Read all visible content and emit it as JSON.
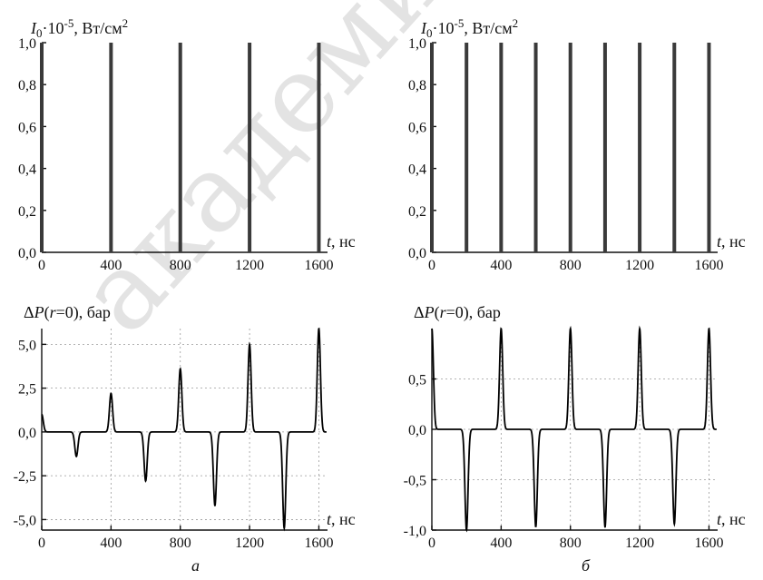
{
  "watermark": "академия наук Белар",
  "chart_data": [
    {
      "type": "bar",
      "panel": "a-top",
      "ylabel": "I0·10^-5, Вт/см^2",
      "xlabel": "t, нс",
      "xlim": [
        0,
        1650
      ],
      "ylim": [
        0,
        1.0
      ],
      "x_ticks": [
        "0",
        "400",
        "800",
        "1200",
        "1600"
      ],
      "y_ticks": [
        "0,0",
        "0,2",
        "0,4",
        "0,6",
        "0,8",
        "1,0"
      ],
      "pulses_x": [
        0,
        400,
        800,
        1200,
        1600
      ],
      "pulse_value": 1.0,
      "grid": false
    },
    {
      "type": "bar",
      "panel": "b-top",
      "ylabel": "I0·10^-5, Вт/см^2",
      "xlabel": "t, нс",
      "xlim": [
        0,
        1650
      ],
      "ylim": [
        0,
        1.0
      ],
      "x_ticks": [
        "0",
        "400",
        "800",
        "1200",
        "1600"
      ],
      "y_ticks": [
        "0,0",
        "0,2",
        "0,4",
        "0,6",
        "0,8",
        "1,0"
      ],
      "pulses_x": [
        0,
        200,
        400,
        600,
        800,
        1000,
        1200,
        1400,
        1600
      ],
      "pulse_value": 1.0,
      "grid": false
    },
    {
      "type": "line",
      "panel": "a-bottom",
      "ylabel": "ΔP(r=0), бар",
      "xlabel": "t, нс",
      "caption": "а",
      "xlim": [
        0,
        1650
      ],
      "ylim": [
        -5.6,
        5.9
      ],
      "x_ticks": [
        "0",
        "400",
        "800",
        "1200",
        "1600"
      ],
      "y_ticks": [
        "-5,0",
        "-2,5",
        "0,0",
        "2,5",
        "5,0"
      ],
      "y_tick_values": [
        -5.0,
        -2.5,
        0.0,
        2.5,
        5.0
      ],
      "x_tick_values": [
        0,
        400,
        800,
        1200,
        1600
      ],
      "grid": true,
      "peaks": [
        {
          "x": 0,
          "y": 1.0
        },
        {
          "x": 200,
          "y": -1.4
        },
        {
          "x": 400,
          "y": 2.2
        },
        {
          "x": 600,
          "y": -2.8
        },
        {
          "x": 800,
          "y": 3.6
        },
        {
          "x": 1000,
          "y": -4.2
        },
        {
          "x": 1200,
          "y": 5.0
        },
        {
          "x": 1400,
          "y": -5.5
        },
        {
          "x": 1600,
          "y": 5.9
        }
      ]
    },
    {
      "type": "line",
      "panel": "b-bottom",
      "ylabel": "ΔP(r=0), бар",
      "xlabel": "t, нс",
      "caption": "б",
      "xlim": [
        0,
        1650
      ],
      "ylim": [
        -1.0,
        1.0
      ],
      "x_ticks": [
        "0",
        "400",
        "800",
        "1200",
        "1600"
      ],
      "y_ticks": [
        "-1,0",
        "-0,5",
        "0,0",
        "0,5"
      ],
      "y_tick_values": [
        -1.0,
        -0.5,
        0.0,
        0.5
      ],
      "x_tick_values": [
        0,
        400,
        800,
        1200,
        1600
      ],
      "grid": true,
      "peaks": [
        {
          "x": 0,
          "y": 1.0
        },
        {
          "x": 200,
          "y": -1.0
        },
        {
          "x": 400,
          "y": 1.0
        },
        {
          "x": 600,
          "y": -0.97
        },
        {
          "x": 800,
          "y": 1.0
        },
        {
          "x": 1000,
          "y": -0.97
        },
        {
          "x": 1200,
          "y": 1.0
        },
        {
          "x": 1400,
          "y": -0.94
        },
        {
          "x": 1600,
          "y": 1.0
        }
      ]
    }
  ]
}
